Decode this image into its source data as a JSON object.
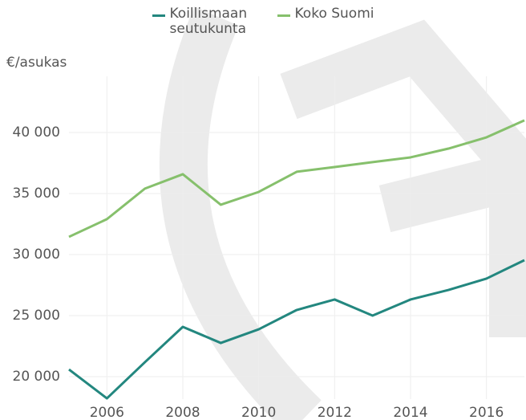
{
  "chart_data": {
    "type": "line",
    "y_label": "€/asukas",
    "x": [
      2005,
      2006,
      2007,
      2008,
      2009,
      2010,
      2011,
      2012,
      2013,
      2014,
      2015,
      2016,
      2017
    ],
    "series": [
      {
        "name": "Koillismaan seutukunta",
        "color": "#23877f",
        "values": [
          20590,
          18220,
          21180,
          24080,
          22760,
          23880,
          25460,
          26320,
          25000,
          26320,
          27100,
          28030,
          29540
        ]
      },
      {
        "name": "Koko Suomi",
        "color": "#86c06c",
        "values": [
          31450,
          32900,
          35400,
          36580,
          34080,
          35130,
          36780,
          37170,
          37570,
          37960,
          38680,
          39600,
          40990
        ]
      }
    ],
    "xlim": [
      2005,
      2017
    ],
    "xticks": [
      2006,
      2008,
      2010,
      2012,
      2014,
      2016
    ],
    "ylim": [
      18160,
      44600
    ],
    "yticks": [
      {
        "value": 20000,
        "label": "20 000"
      },
      {
        "value": 25000,
        "label": "25 000"
      },
      {
        "value": 30000,
        "label": "30 000"
      },
      {
        "value": 35000,
        "label": "35 000"
      },
      {
        "value": 40000,
        "label": "40 000"
      }
    ],
    "grid": true,
    "legend": "top"
  }
}
